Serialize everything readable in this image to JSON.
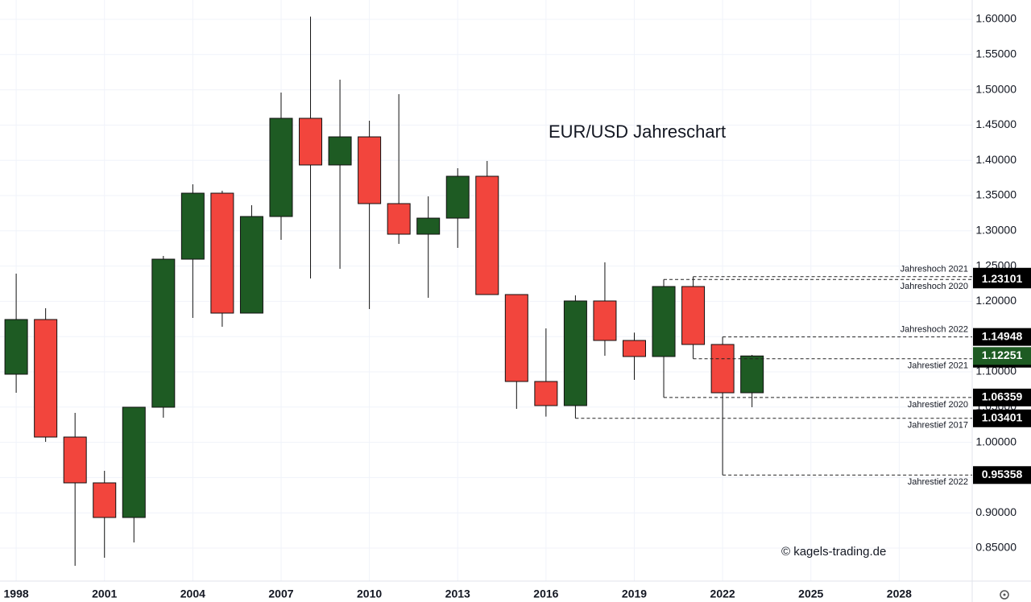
{
  "chart_data": {
    "type": "candlestick",
    "title": "EUR/USD Jahreschart",
    "watermark": "© kagels-trading.de",
    "x": [
      1998,
      1999,
      2000,
      2001,
      2002,
      2003,
      2004,
      2005,
      2006,
      2007,
      2008,
      2009,
      2010,
      2011,
      2012,
      2013,
      2014,
      2015,
      2016,
      2017,
      2018,
      2019,
      2020,
      2021,
      2022,
      2023
    ],
    "open": [
      1.0966,
      1.1742,
      1.0075,
      0.9425,
      0.8934,
      1.0498,
      1.2598,
      1.3534,
      1.1833,
      1.3203,
      1.4596,
      1.3934,
      1.4333,
      1.3386,
      1.2952,
      1.318,
      1.3774,
      1.2096,
      1.0863,
      1.0521,
      1.2005,
      1.1445,
      1.1217,
      1.221,
      1.1388,
      1.0703
    ],
    "high": [
      1.2393,
      1.1902,
      1.0418,
      0.9596,
      1.0498,
      1.2644,
      1.366,
      1.3568,
      1.3363,
      1.4961,
      1.6039,
      1.5144,
      1.4562,
      1.4938,
      1.3489,
      1.3888,
      1.3991,
      1.2096,
      1.1616,
      1.2084,
      1.2553,
      1.1556,
      1.23101,
      1.23495,
      1.14948,
      1.124
    ],
    "low": [
      1.0703,
      1.0007,
      0.8249,
      0.8363,
      0.858,
      1.0349,
      1.1765,
      1.1639,
      1.1833,
      1.2872,
      1.2324,
      1.2461,
      1.189,
      1.2815,
      1.205,
      1.2758,
      1.2096,
      1.0475,
      1.0365,
      1.03401,
      1.1228,
      1.0886,
      1.06359,
      1.11861,
      0.95358,
      1.0498
    ],
    "close": [
      1.1742,
      1.0075,
      0.9425,
      0.8934,
      1.0498,
      1.2598,
      1.3534,
      1.1833,
      1.3203,
      1.4596,
      1.3934,
      1.4333,
      1.3386,
      1.2952,
      1.318,
      1.3774,
      1.2096,
      1.0863,
      1.0521,
      1.2005,
      1.1445,
      1.1217,
      1.221,
      1.1388,
      1.0703,
      1.12251
    ],
    "up_color": "#1e5b23",
    "down_color": "#f2453d",
    "xlim": [
      1997.45,
      2030.48
    ],
    "xticks": [
      1998,
      2001,
      2004,
      2007,
      2010,
      2013,
      2016,
      2019,
      2022,
      2025,
      2028
    ],
    "ylim": [
      0.8032,
      1.6274
    ],
    "yticks": [
      {
        "value": 0.85,
        "label": "0.85000"
      },
      {
        "value": 0.9,
        "label": "0.90000"
      },
      {
        "value": 0.95,
        "label": "0.95000"
      },
      {
        "value": 1.0,
        "label": "1.00000"
      },
      {
        "value": 1.05,
        "label": "1.05000"
      },
      {
        "value": 1.1,
        "label": "1.10000"
      },
      {
        "value": 1.15,
        "label": "1.15000"
      },
      {
        "value": 1.2,
        "label": "1.20000"
      },
      {
        "value": 1.25,
        "label": "1.25000"
      },
      {
        "value": 1.3,
        "label": "1.30000"
      },
      {
        "value": 1.35,
        "label": "1.35000"
      },
      {
        "value": 1.4,
        "label": "1.40000"
      },
      {
        "value": 1.45,
        "label": "1.45000"
      },
      {
        "value": 1.5,
        "label": "1.50000"
      },
      {
        "value": 1.55,
        "label": "1.55000"
      },
      {
        "value": 1.6,
        "label": "1.60000"
      }
    ],
    "grid": true,
    "levels": [
      {
        "name": "Jahreshoch 2021",
        "value": 1.23495,
        "year": 2021,
        "label_pos": "above"
      },
      {
        "name": "Jahreshoch 2020",
        "value": 1.23101,
        "year": 2020,
        "label_pos": "below"
      },
      {
        "name": "Jahreshoch 2022",
        "value": 1.14948,
        "year": 2022,
        "label_pos": "above"
      },
      {
        "name": "Jahrestief 2021",
        "value": 1.11861,
        "year": 2021,
        "label_pos": "below"
      },
      {
        "name": "Jahrestief 2020",
        "value": 1.06359,
        "year": 2020,
        "label_pos": "below"
      },
      {
        "name": "Jahrestief 2017",
        "value": 1.03401,
        "year": 2017,
        "label_pos": "below"
      },
      {
        "name": "Jahrestief 2022",
        "value": 0.95358,
        "year": 2022,
        "label_pos": "below"
      }
    ]
  }
}
